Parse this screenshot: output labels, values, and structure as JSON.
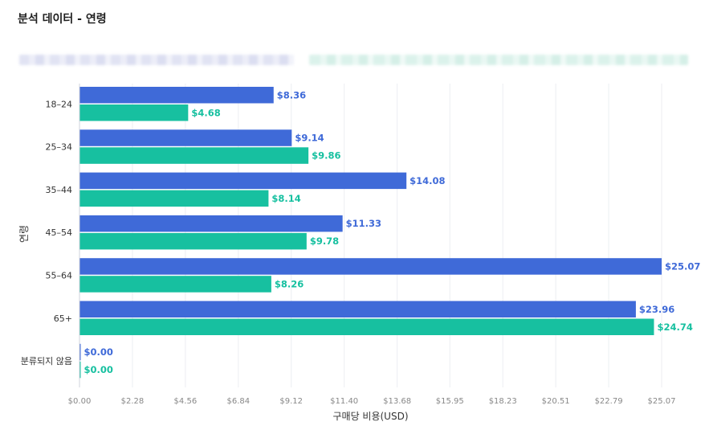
{
  "page": {
    "title": "분석 데이터 - 연령"
  },
  "chart_data": {
    "type": "bar",
    "orientation": "horizontal",
    "categories": [
      "18–24",
      "25–34",
      "35–44",
      "45–54",
      "55–64",
      "65+",
      "분류되지 않음"
    ],
    "series": [
      {
        "color": "#3f6ad8",
        "values": [
          8.36,
          9.14,
          14.08,
          11.33,
          25.07,
          23.96,
          0.0
        ]
      },
      {
        "color": "#17c0a0",
        "values": [
          4.68,
          9.86,
          8.14,
          9.78,
          8.26,
          24.74,
          0.0
        ]
      }
    ],
    "data_labels": [
      [
        "$8.36",
        "$9.14",
        "$14.08",
        "$11.33",
        "$25.07",
        "$23.96",
        "$0.00"
      ],
      [
        "$4.68",
        "$9.86",
        "$8.14",
        "$9.78",
        "$8.26",
        "$24.74",
        "$0.00"
      ]
    ],
    "xlabel": "구매당 비용(USD)",
    "ylabel": "연령",
    "xlim": [
      0,
      25.07
    ],
    "x_ticks": [
      0,
      2.28,
      4.56,
      6.84,
      9.12,
      11.4,
      13.68,
      15.95,
      18.23,
      20.51,
      22.79,
      25.07
    ],
    "x_tick_labels": [
      "$0.00",
      "$2.28",
      "$4.56",
      "$6.84",
      "$9.12",
      "$11.40",
      "$13.68",
      "$15.95",
      "$18.23",
      "$20.51",
      "$22.79",
      "$25.07"
    ],
    "grid": "vertical",
    "legend": "top, obscured"
  }
}
